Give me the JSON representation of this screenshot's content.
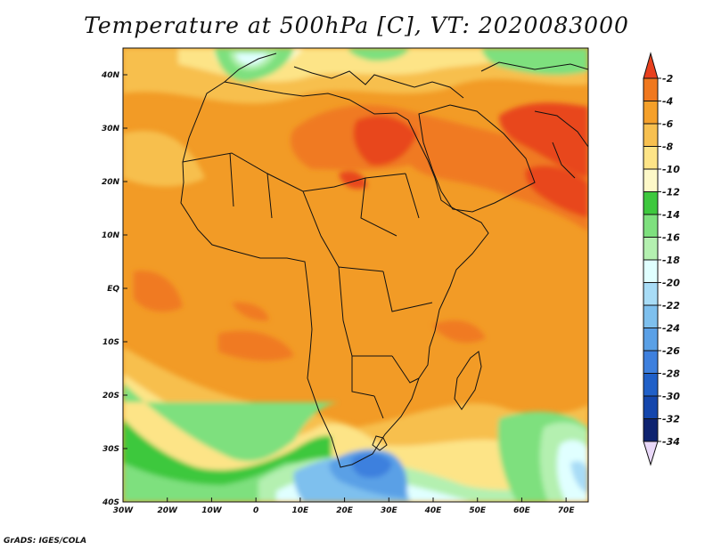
{
  "title": "Temperature at 500hPa [C], VT: 2020083000",
  "footer": "GrADS: IGES/COLA",
  "lat_ticks": [
    {
      "label": "40N",
      "lat": 40
    },
    {
      "label": "30N",
      "lat": 30
    },
    {
      "label": "20N",
      "lat": 20
    },
    {
      "label": "10N",
      "lat": 10
    },
    {
      "label": "EQ",
      "lat": 0
    },
    {
      "label": "10S",
      "lat": -10
    },
    {
      "label": "20S",
      "lat": -20
    },
    {
      "label": "30S",
      "lat": -30
    },
    {
      "label": "40S",
      "lat": -40
    }
  ],
  "lon_ticks": [
    {
      "label": "30W",
      "lon": -30
    },
    {
      "label": "20W",
      "lon": -20
    },
    {
      "label": "10W",
      "lon": -10
    },
    {
      "label": "0",
      "lon": 0
    },
    {
      "label": "10E",
      "lon": 10
    },
    {
      "label": "20E",
      "lon": 20
    },
    {
      "label": "30E",
      "lon": 30
    },
    {
      "label": "40E",
      "lon": 40
    },
    {
      "label": "50E",
      "lon": 50
    },
    {
      "label": "60E",
      "lon": 60
    },
    {
      "label": "70E",
      "lon": 70
    }
  ],
  "colorbar": {
    "labels": [
      "-2",
      "-4",
      "-6",
      "-8",
      "-10",
      "-12",
      "-14",
      "-16",
      "-18",
      "-20",
      "-22",
      "-24",
      "-26",
      "-28",
      "-30",
      "-32",
      "-34"
    ],
    "colors": [
      "#e8401e",
      "#f0781e",
      "#f5a02a",
      "#f7c050",
      "#fde487",
      "#fdf8c8",
      "#3ec83e",
      "#7ee07e",
      "#b4f0b0",
      "#e0ffff",
      "#a8dcf6",
      "#7ec0ee",
      "#5aa0e6",
      "#3e80de",
      "#2060c8",
      "#1446ac",
      "#0e2370"
    ],
    "lower_arrow_color": "#e9d8f8"
  },
  "map_extent": {
    "lon_min": -30,
    "lon_max": 75,
    "lat_min": -40,
    "lat_max": 45
  }
}
